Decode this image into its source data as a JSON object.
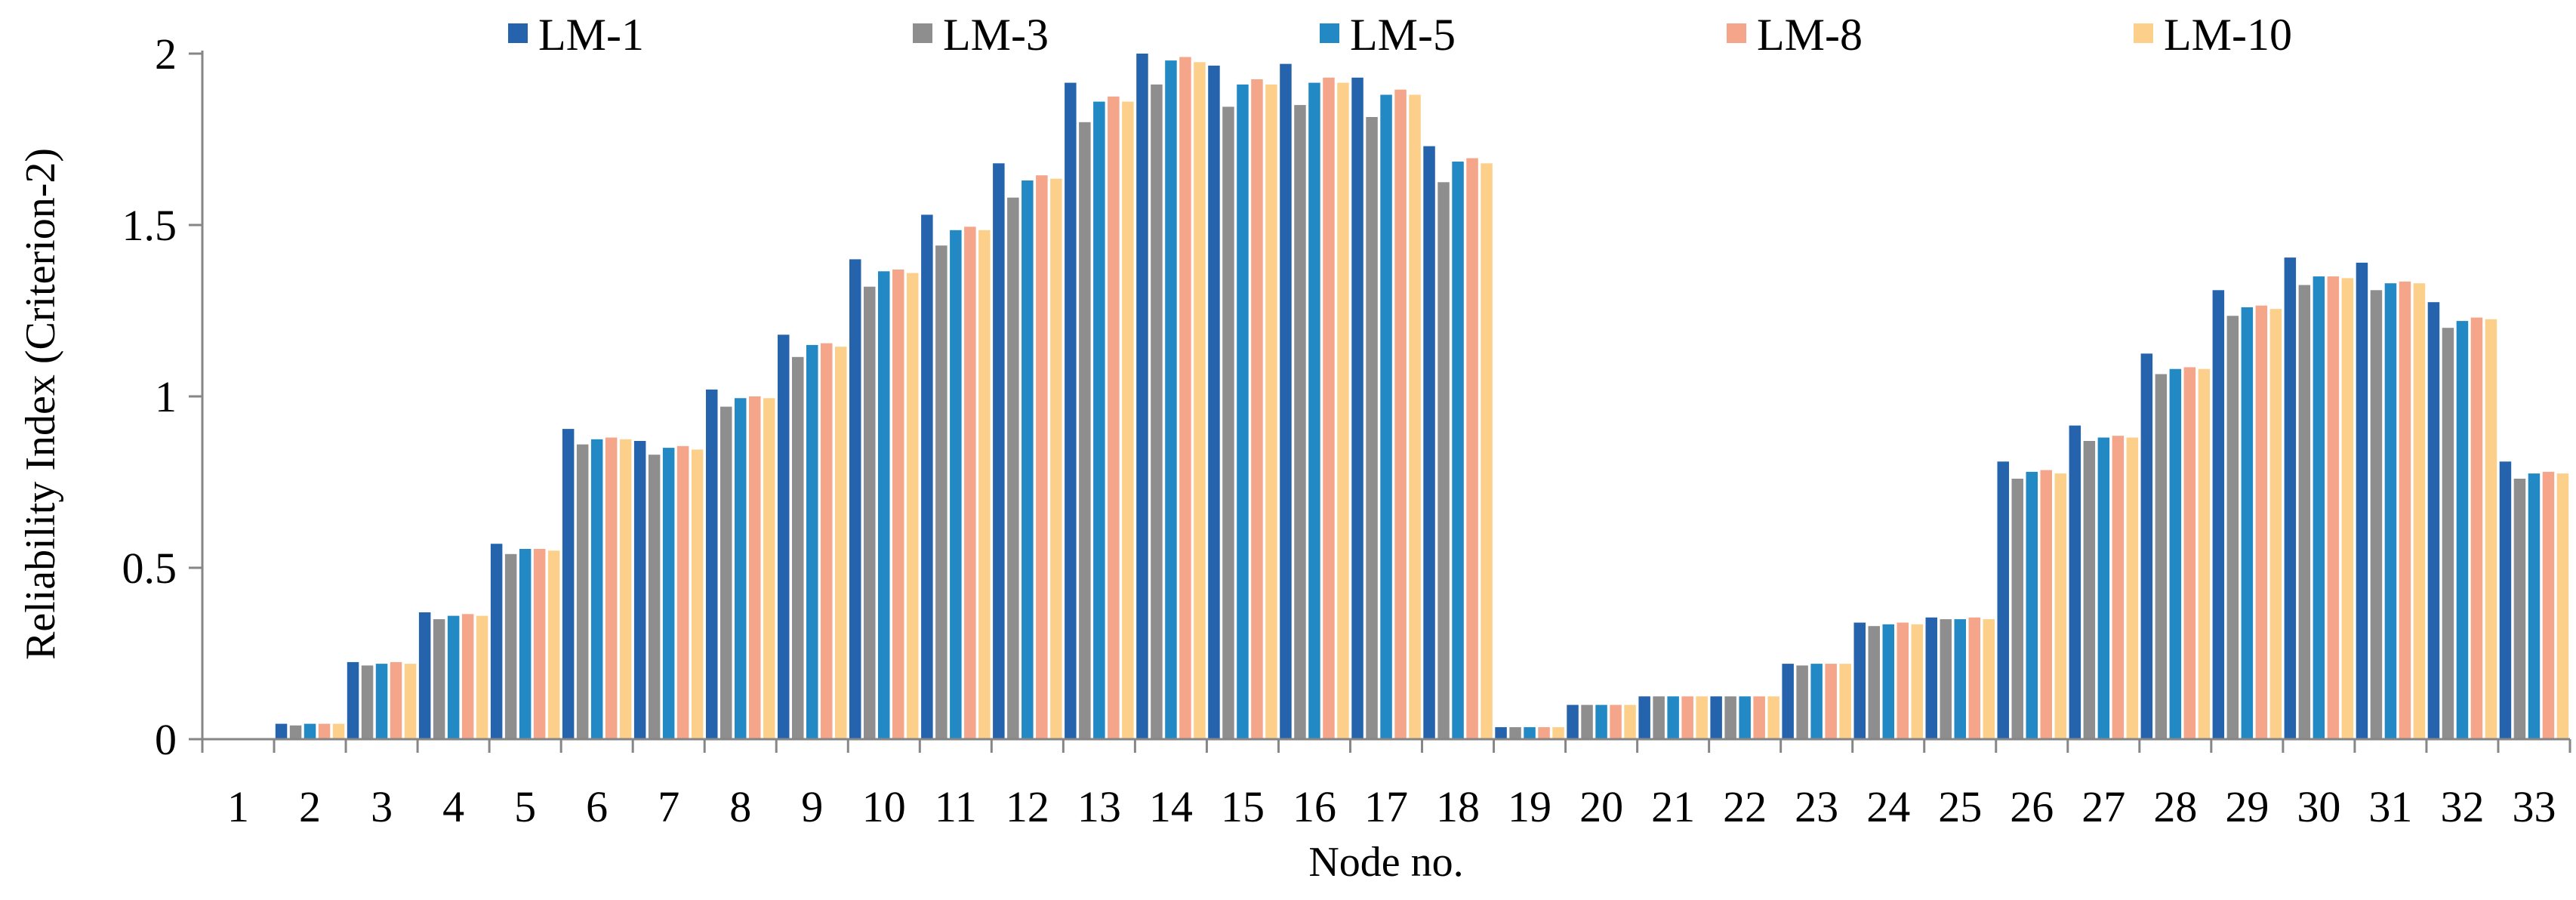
{
  "chart_data": {
    "type": "bar",
    "title": "",
    "xlabel": "Node no.",
    "ylabel": "Reliability Index (Criterion-2)",
    "ylim": [
      0,
      2
    ],
    "yticks": [
      "0",
      "0.5",
      "1",
      "1.5",
      "2"
    ],
    "grid": false,
    "legend_position": "top",
    "categories": [
      "1",
      "2",
      "3",
      "4",
      "5",
      "6",
      "7",
      "8",
      "9",
      "10",
      "11",
      "12",
      "13",
      "14",
      "15",
      "16",
      "17",
      "18",
      "19",
      "20",
      "21",
      "22",
      "23",
      "24",
      "25",
      "26",
      "27",
      "28",
      "29",
      "30",
      "31",
      "32",
      "33"
    ],
    "series": [
      {
        "name": "LM-1",
        "color": "#2563ad",
        "values": [
          0,
          0.045,
          0.225,
          0.37,
          0.57,
          0.905,
          0.87,
          1.02,
          1.18,
          1.4,
          1.53,
          1.68,
          1.915,
          2.0,
          1.965,
          1.97,
          1.93,
          1.73,
          0.035,
          0.1,
          0.125,
          0.125,
          0.22,
          0.34,
          0.355,
          0.81,
          0.915,
          1.125,
          1.31,
          1.405,
          1.39,
          1.275,
          0.81
        ]
      },
      {
        "name": "LM-3",
        "color": "#8e8e8e",
        "values": [
          0,
          0.04,
          0.215,
          0.35,
          0.54,
          0.86,
          0.83,
          0.97,
          1.115,
          1.32,
          1.44,
          1.58,
          1.8,
          1.91,
          1.845,
          1.85,
          1.815,
          1.625,
          0.035,
          0.1,
          0.125,
          0.125,
          0.215,
          0.33,
          0.35,
          0.76,
          0.87,
          1.065,
          1.235,
          1.325,
          1.31,
          1.2,
          0.76
        ]
      },
      {
        "name": "LM-5",
        "color": "#2389c4",
        "values": [
          0,
          0.045,
          0.22,
          0.36,
          0.555,
          0.875,
          0.85,
          0.995,
          1.15,
          1.365,
          1.485,
          1.63,
          1.86,
          1.98,
          1.91,
          1.915,
          1.88,
          1.685,
          0.035,
          0.1,
          0.125,
          0.125,
          0.22,
          0.335,
          0.35,
          0.78,
          0.88,
          1.08,
          1.26,
          1.35,
          1.33,
          1.22,
          0.775
        ]
      },
      {
        "name": "LM-8",
        "color": "#f4a58a",
        "values": [
          0,
          0.045,
          0.225,
          0.365,
          0.555,
          0.88,
          0.855,
          1.0,
          1.155,
          1.37,
          1.495,
          1.645,
          1.875,
          1.99,
          1.925,
          1.93,
          1.895,
          1.695,
          0.035,
          0.1,
          0.125,
          0.125,
          0.22,
          0.34,
          0.355,
          0.785,
          0.885,
          1.085,
          1.265,
          1.35,
          1.335,
          1.23,
          0.78
        ]
      },
      {
        "name": "LM-10",
        "color": "#fcd08a",
        "values": [
          0,
          0.045,
          0.22,
          0.36,
          0.55,
          0.875,
          0.845,
          0.995,
          1.145,
          1.36,
          1.485,
          1.635,
          1.86,
          1.975,
          1.91,
          1.915,
          1.88,
          1.68,
          0.035,
          0.1,
          0.125,
          0.125,
          0.22,
          0.335,
          0.35,
          0.775,
          0.88,
          1.08,
          1.255,
          1.345,
          1.33,
          1.225,
          0.775
        ]
      }
    ]
  }
}
